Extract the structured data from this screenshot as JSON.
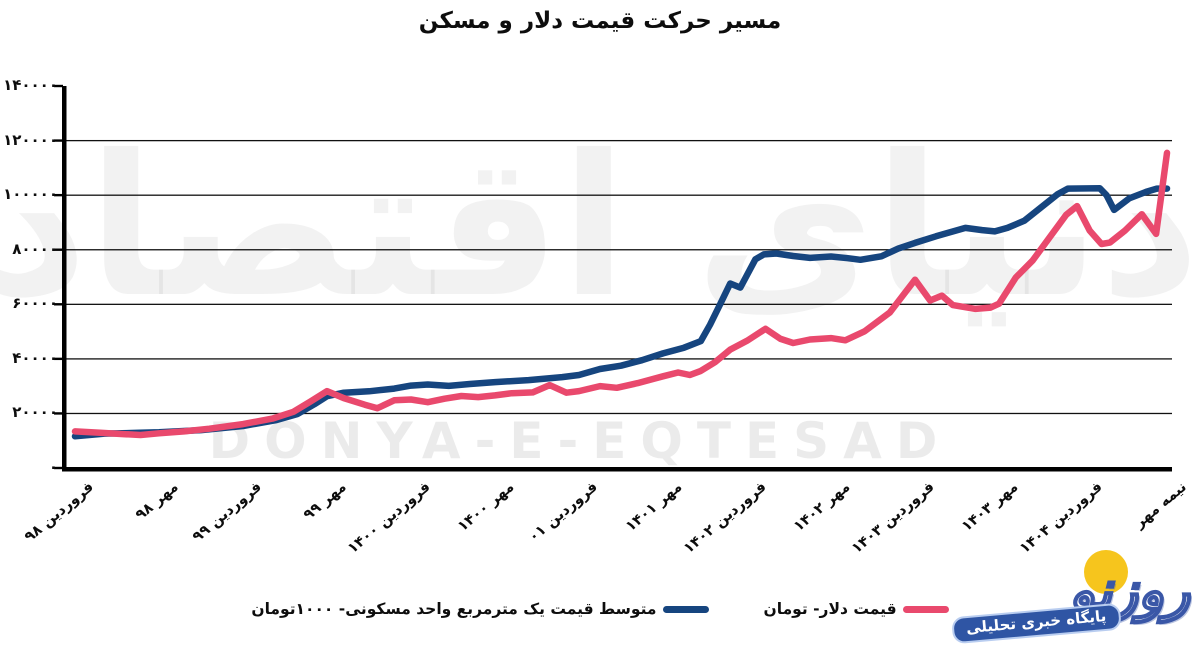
{
  "title": "مسیر حرکت قیمت دلار و مسکن",
  "watermark": {
    "persian": "دنیای اقتصاد",
    "latin": "DONYA-E-EQTESAD"
  },
  "logo": {
    "brand": "روزنو",
    "tagline": "پایگاه خبری تحلیلی",
    "sun_color": "#f6c51d",
    "blue_color": "#3a57a7"
  },
  "legend": {
    "items": [
      {
        "label": "متوسط قیمت یک مترمربع واحد مسکونی- ۱۰۰۰تومان",
        "color": "#16457f"
      },
      {
        "label": "قیمت دلار- تومان",
        "color": "#e9496d"
      }
    ]
  },
  "chart_data": {
    "type": "line",
    "title": "مسیر حرکت قیمت دلار و مسکن",
    "grid": "horizontal",
    "legend_position": "bottom",
    "ylim": [
      0,
      140000
    ],
    "y_tick_step": 20000,
    "y_ticks": [
      {
        "value": 0,
        "label": "۰"
      },
      {
        "value": 20000,
        "label": "۲۰۰۰۰"
      },
      {
        "value": 40000,
        "label": "۴۰۰۰۰"
      },
      {
        "value": 60000,
        "label": "۶۰۰۰۰"
      },
      {
        "value": 80000,
        "label": "۸۰۰۰۰"
      },
      {
        "value": 100000,
        "label": "۱۰۰۰۰۰"
      },
      {
        "value": 120000,
        "label": "۱۲۰۰۰۰"
      },
      {
        "value": 140000,
        "label": "۱۴۰۰۰۰"
      }
    ],
    "categories": [
      "فروردین ۹۸",
      "مهر ۹۸",
      "فروردین ۹۹",
      "مهر ۹۹",
      "فروردین ۱۴۰۰",
      "مهر ۱۴۰۰",
      "فروردین ۰۱",
      "مهر ۱۴۰۱",
      "فروردین ۱۴۰۲",
      "مهر ۱۴۰۲",
      "فروردین ۱۴۰۳",
      "مهر ۱۴۰۳",
      "فروردین ۱۴۰۴",
      "نیمه مهر"
    ],
    "series": [
      {
        "name": "متوسط قیمت یک مترمربع واحد مسکونی- ۱۰۰۰تومان",
        "color": "#16457f",
        "points": [
          [
            0,
            11600
          ],
          [
            0.35,
            12600
          ],
          [
            0.77,
            12900
          ],
          [
            1,
            13100
          ],
          [
            1.5,
            13900
          ],
          [
            2,
            15400
          ],
          [
            2.4,
            17600
          ],
          [
            2.65,
            19800
          ],
          [
            2.85,
            23400
          ],
          [
            3,
            26300
          ],
          [
            3.2,
            27600
          ],
          [
            3.5,
            28100
          ],
          [
            3.8,
            29100
          ],
          [
            4,
            30200
          ],
          [
            4.2,
            30600
          ],
          [
            4.45,
            30100
          ],
          [
            4.7,
            30800
          ],
          [
            5,
            31500
          ],
          [
            5.4,
            32200
          ],
          [
            5.8,
            33300
          ],
          [
            6,
            34100
          ],
          [
            6.25,
            36300
          ],
          [
            6.5,
            37500
          ],
          [
            6.75,
            39500
          ],
          [
            7,
            42000
          ],
          [
            7.25,
            44100
          ],
          [
            7.45,
            46500
          ],
          [
            7.56,
            52500
          ],
          [
            7.68,
            60000
          ],
          [
            7.8,
            67600
          ],
          [
            7.92,
            66100
          ],
          [
            8.1,
            76500
          ],
          [
            8.2,
            78300
          ],
          [
            8.35,
            78600
          ],
          [
            8.55,
            77700
          ],
          [
            8.75,
            77000
          ],
          [
            9,
            77500
          ],
          [
            9.2,
            76900
          ],
          [
            9.35,
            76300
          ],
          [
            9.6,
            77600
          ],
          [
            9.8,
            80400
          ],
          [
            10,
            82500
          ],
          [
            10.25,
            84900
          ],
          [
            10.6,
            88000
          ],
          [
            10.8,
            87200
          ],
          [
            10.95,
            86700
          ],
          [
            11.1,
            88000
          ],
          [
            11.3,
            90600
          ],
          [
            11.5,
            95500
          ],
          [
            11.7,
            100400
          ],
          [
            11.82,
            102400
          ],
          [
            12.2,
            102500
          ],
          [
            12.28,
            100000
          ],
          [
            12.37,
            94600
          ],
          [
            12.55,
            98800
          ],
          [
            12.75,
            101200
          ],
          [
            12.88,
            102400
          ],
          [
            13,
            102400
          ]
        ]
      },
      {
        "name": "قیمت دلار- تومان",
        "color": "#e9496d",
        "points": [
          [
            0,
            13400
          ],
          [
            0.3,
            12900
          ],
          [
            0.6,
            12400
          ],
          [
            0.78,
            12100
          ],
          [
            1,
            12700
          ],
          [
            1.3,
            13400
          ],
          [
            1.6,
            14400
          ],
          [
            2,
            16100
          ],
          [
            2.35,
            18100
          ],
          [
            2.6,
            20600
          ],
          [
            2.8,
            24300
          ],
          [
            3,
            28200
          ],
          [
            3.2,
            25600
          ],
          [
            3.45,
            23200
          ],
          [
            3.6,
            21900
          ],
          [
            3.8,
            24800
          ],
          [
            4,
            25100
          ],
          [
            4.2,
            24100
          ],
          [
            4.4,
            25400
          ],
          [
            4.6,
            26400
          ],
          [
            4.8,
            26000
          ],
          [
            5,
            26600
          ],
          [
            5.2,
            27400
          ],
          [
            5.45,
            27700
          ],
          [
            5.65,
            30400
          ],
          [
            5.85,
            27600
          ],
          [
            6,
            28200
          ],
          [
            6.25,
            30000
          ],
          [
            6.45,
            29400
          ],
          [
            6.7,
            31100
          ],
          [
            7,
            33600
          ],
          [
            7.18,
            35000
          ],
          [
            7.32,
            34100
          ],
          [
            7.45,
            35600
          ],
          [
            7.62,
            38800
          ],
          [
            7.8,
            43400
          ],
          [
            8,
            46600
          ],
          [
            8.22,
            51000
          ],
          [
            8.4,
            47300
          ],
          [
            8.55,
            45800
          ],
          [
            8.75,
            47100
          ],
          [
            9,
            47600
          ],
          [
            9.17,
            46800
          ],
          [
            9.4,
            50100
          ],
          [
            9.7,
            57000
          ],
          [
            10,
            69000
          ],
          [
            10.18,
            61400
          ],
          [
            10.32,
            63200
          ],
          [
            10.45,
            59700
          ],
          [
            10.72,
            58300
          ],
          [
            10.9,
            58800
          ],
          [
            11,
            60200
          ],
          [
            11.2,
            69800
          ],
          [
            11.4,
            76000
          ],
          [
            11.6,
            84400
          ],
          [
            11.8,
            92800
          ],
          [
            11.93,
            96000
          ],
          [
            12.08,
            87000
          ],
          [
            12.22,
            82100
          ],
          [
            12.32,
            82600
          ],
          [
            12.5,
            87000
          ],
          [
            12.7,
            93000
          ],
          [
            12.87,
            85800
          ],
          [
            13,
            115500
          ]
        ]
      }
    ]
  }
}
